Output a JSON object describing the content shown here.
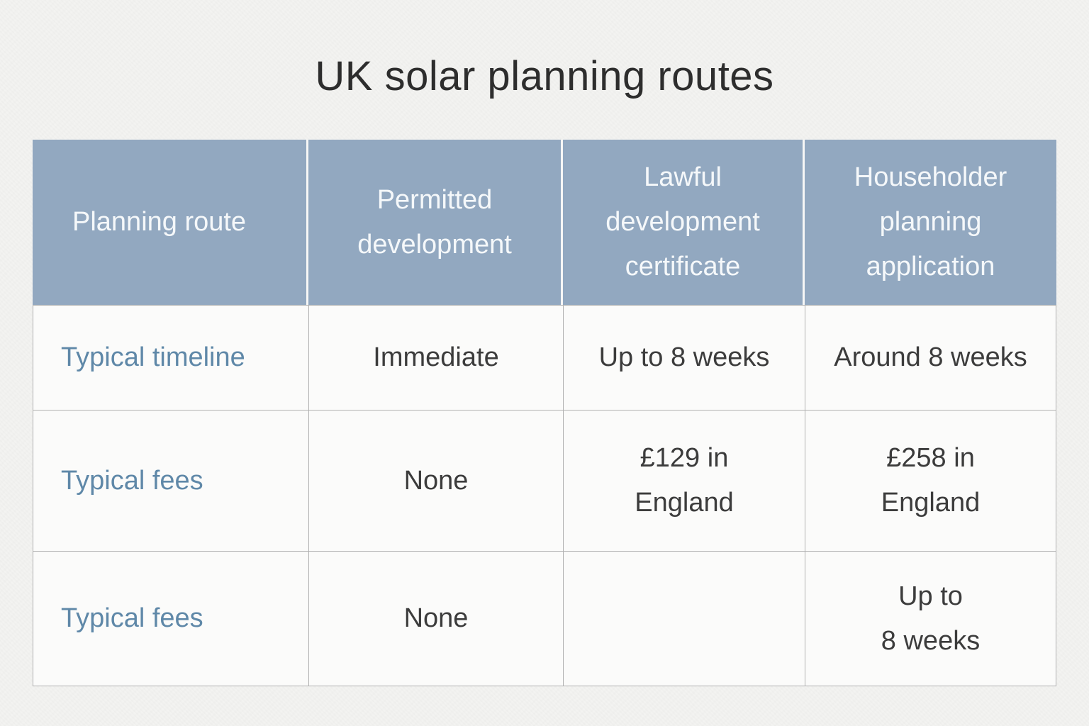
{
  "title": "UK solar planning routes",
  "colors": {
    "header_bg": "#92a8c0",
    "header_text": "#f5f8fa",
    "row_label_text": "#5f88a8",
    "cell_text": "#3c3c3c",
    "grid_line": "#b0b0b0",
    "page_bg": "#f3f3f1",
    "cell_bg": "#fbfbfa"
  },
  "table": {
    "headers": [
      "Planning route",
      "Permitted development",
      "Lawful development certificate",
      "Householder planning application"
    ],
    "rows": [
      {
        "label": "Typical timeline",
        "cells": [
          "Immediate",
          "Up to 8 weeks",
          "Around 8 weeks"
        ]
      },
      {
        "label": "Typical fees",
        "cells": [
          "None",
          "£129 in\nEngland",
          "£258 in\nEngland"
        ]
      },
      {
        "label": "Typical fees",
        "cells": [
          "None",
          "",
          "Up to\n8 weeks"
        ]
      }
    ]
  },
  "chart_data": {
    "type": "table",
    "title": "UK solar planning routes",
    "columns": [
      "Planning route",
      "Permitted development",
      "Lawful development certificate",
      "Householder planning application"
    ],
    "rows": [
      [
        "Typical timeline",
        "Immediate",
        "Up to 8 weeks",
        "Around 8 weeks"
      ],
      [
        "Typical fees",
        "None",
        "£129 in England",
        "£258 in England"
      ],
      [
        "Typical fees",
        "None",
        "",
        "Up to 8 weeks"
      ]
    ]
  }
}
